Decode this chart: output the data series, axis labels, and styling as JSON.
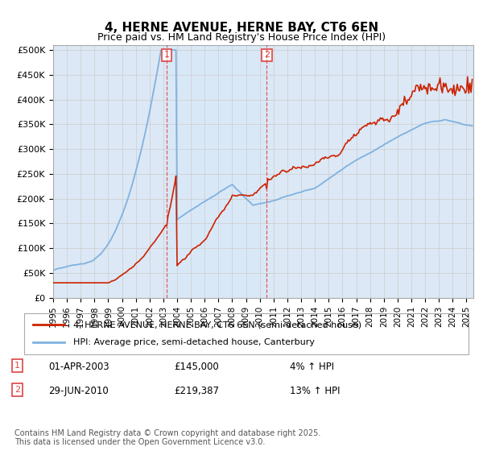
{
  "title": "4, HERNE AVENUE, HERNE BAY, CT6 6EN",
  "subtitle": "Price paid vs. HM Land Registry's House Price Index (HPI)",
  "ylabel_ticks": [
    "£0",
    "£50K",
    "£100K",
    "£150K",
    "£200K",
    "£250K",
    "£300K",
    "£350K",
    "£400K",
    "£450K",
    "£500K"
  ],
  "ytick_vals": [
    0,
    50000,
    100000,
    150000,
    200000,
    250000,
    300000,
    350000,
    400000,
    450000,
    500000
  ],
  "ylim": [
    0,
    510000
  ],
  "xlim_start": 1995,
  "xlim_end": 2025.5,
  "background_color": "#dce8f5",
  "fig_bg_color": "#ffffff",
  "legend_label_red": "4, HERNE AVENUE, HERNE BAY, CT6 6EN (semi-detached house)",
  "legend_label_blue": "HPI: Average price, semi-detached house, Canterbury",
  "sale1_year": 2003.25,
  "sale2_year": 2010.5,
  "marker1_date_str": "01-APR-2003",
  "marker1_price": "£145,000",
  "marker1_pct": "4% ↑ HPI",
  "marker2_date_str": "29-JUN-2010",
  "marker2_price": "£219,387",
  "marker2_pct": "13% ↑ HPI",
  "footer": "Contains HM Land Registry data © Crown copyright and database right 2025.\nThis data is licensed under the Open Government Licence v3.0.",
  "red_color": "#cc2200",
  "blue_color": "#7fb2e0",
  "vline_color": "#dd4444",
  "grid_color": "#cccccc",
  "shade_color": "#d8e8f8",
  "title_fontsize": 11,
  "subtitle_fontsize": 9
}
